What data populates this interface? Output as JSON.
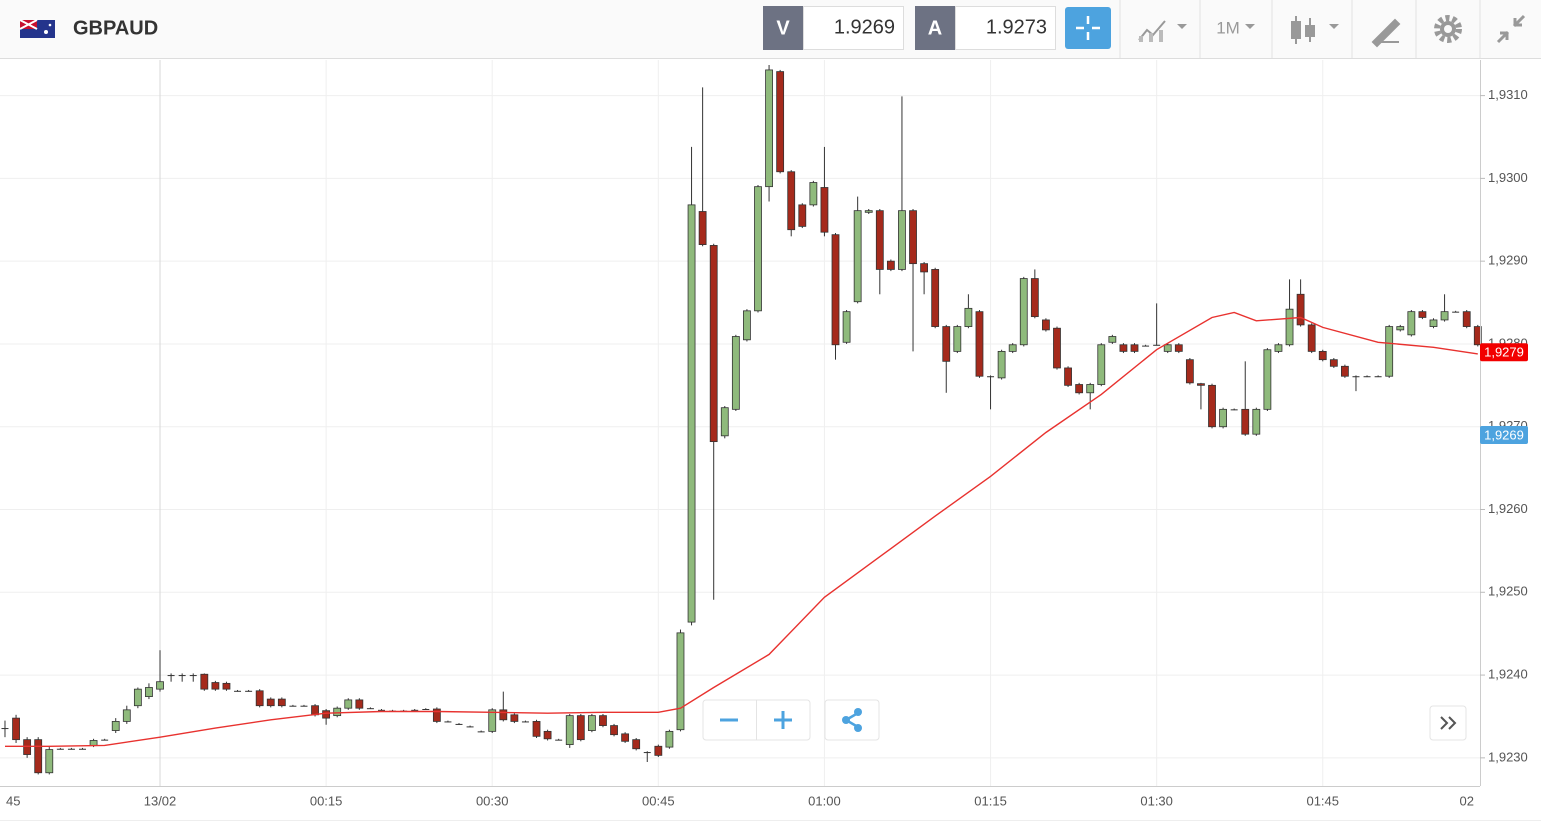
{
  "header": {
    "symbol": "GBPAUD",
    "bid_label": "V",
    "bid": "1.9269",
    "ask_label": "A",
    "ask": "1.9273",
    "timeframe": "1M"
  },
  "chart_data": {
    "type": "candlestick",
    "up_color": "#8fba7c",
    "down_color": "#a52a1c",
    "doji_color": "#333333",
    "grid": true,
    "xlim": [
      -14.45,
      119.2
    ],
    "ylim": [
      1.92266,
      1.93143
    ],
    "yticks": [
      {
        "value": 1.923,
        "label": "1,9230"
      },
      {
        "value": 1.924,
        "label": "1,9240"
      },
      {
        "value": 1.925,
        "label": "1,9250"
      },
      {
        "value": 1.926,
        "label": "1,9260"
      },
      {
        "value": 1.927,
        "label": "1,9270"
      },
      {
        "value": 1.928,
        "label": "1,9280"
      },
      {
        "value": 1.929,
        "label": "1,9290"
      },
      {
        "value": 1.93,
        "label": "1,9300"
      },
      {
        "value": 1.931,
        "label": "1,9310"
      }
    ],
    "xticks": [
      {
        "value": -15,
        "label": "45"
      },
      {
        "value": 0,
        "label": "13/02"
      },
      {
        "value": 15,
        "label": "00:15"
      },
      {
        "value": 30,
        "label": "00:30"
      },
      {
        "value": 45,
        "label": "00:45"
      },
      {
        "value": 60,
        "label": "01:00"
      },
      {
        "value": 75,
        "label": "01:15"
      },
      {
        "value": 90,
        "label": "01:30"
      },
      {
        "value": 105,
        "label": "01:45"
      },
      {
        "value": 120,
        "label": "02"
      }
    ],
    "x": [
      -14,
      -13,
      -12,
      -11,
      -10,
      -9,
      -8,
      -7,
      -6,
      -5,
      -4,
      -3,
      -2,
      -1,
      0,
      1,
      2,
      3,
      4,
      5,
      6,
      7,
      8,
      9,
      10,
      11,
      12,
      13,
      14,
      15,
      16,
      17,
      18,
      19,
      20,
      21,
      22,
      23,
      24,
      25,
      26,
      27,
      28,
      29,
      30,
      31,
      32,
      33,
      34,
      35,
      36,
      37,
      38,
      39,
      40,
      41,
      42,
      43,
      44,
      45,
      46,
      47,
      48,
      49,
      50,
      51,
      52,
      53,
      54,
      55,
      56,
      57,
      58,
      59,
      60,
      61,
      62,
      63,
      64,
      65,
      66,
      67,
      68,
      69,
      70,
      71,
      72,
      73,
      74,
      75,
      76,
      77,
      78,
      79,
      80,
      81,
      82,
      83,
      84,
      85,
      86,
      87,
      88,
      89,
      90,
      91,
      92,
      93,
      94,
      95,
      96,
      97,
      98,
      99,
      100,
      101,
      102,
      103,
      104,
      105,
      106,
      107,
      108,
      109,
      110,
      111,
      112,
      113,
      114,
      115,
      116,
      117,
      118,
      119
    ],
    "open": [
      1.92336,
      1.92348,
      1.92322,
      1.92322,
      1.92282,
      1.92311,
      1.92311,
      1.92311,
      1.92315,
      1.92322,
      1.92333,
      1.92344,
      1.92363,
      1.92374,
      1.92383,
      1.924,
      1.924,
      1.924,
      1.92401,
      1.92391,
      1.9239,
      1.92381,
      1.92381,
      1.92381,
      1.92371,
      1.92371,
      1.92363,
      1.92363,
      1.92363,
      1.92357,
      1.92351,
      1.9236,
      1.9237,
      1.9236,
      1.92358,
      1.92357,
      1.92357,
      1.92358,
      1.92359,
      1.92359,
      1.92344,
      1.92341,
      1.92338,
      1.92332,
      1.92332,
      1.92358,
      1.92352,
      1.92344,
      1.92344,
      1.92332,
      1.92322,
      1.92316,
      1.92351,
      1.92333,
      1.92351,
      1.92339,
      1.92329,
      1.92322,
      1.92307,
      1.92314,
      1.92313,
      1.92334,
      1.92464,
      1.9296,
      1.92919,
      1.92689,
      1.92721,
      1.92805,
      1.9284,
      1.9299,
      1.93129,
      1.93008,
      1.92968,
      1.92968,
      1.92989,
      1.92932,
      1.92802,
      1.92851,
      1.92959,
      1.92961,
      1.929,
      1.9289,
      1.92961,
      1.92897,
      1.9289,
      1.92821,
      1.92791,
      1.92821,
      1.92839,
      1.92761,
      1.92759,
      1.92791,
      1.92799,
      1.92879,
      1.92829,
      1.92819,
      1.92771,
      1.92751,
      1.92741,
      1.92751,
      1.92802,
      1.92799,
      1.92799,
      1.92798,
      1.92799,
      1.92791,
      1.92799,
      1.92781,
      1.92752,
      1.9275,
      1.927,
      1.92721,
      1.92721,
      1.92691,
      1.92721,
      1.92791,
      1.92799,
      1.9286,
      1.92823,
      1.92791,
      1.92781,
      1.92773,
      1.92761,
      1.92761,
      1.92761,
      1.92761,
      1.92817,
      1.92811,
      1.92839,
      1.92821,
      1.92829,
      1.92839,
      1.92839,
      1.92821
    ],
    "high": [
      1.92345,
      1.92352,
      1.92325,
      1.92325,
      1.92313,
      1.92312,
      1.92312,
      1.92312,
      1.92323,
      1.92323,
      1.92348,
      1.92363,
      1.92385,
      1.9239,
      1.9243,
      1.92402,
      1.92402,
      1.92402,
      1.92402,
      1.92393,
      1.92392,
      1.92382,
      1.92382,
      1.92383,
      1.92373,
      1.92373,
      1.92364,
      1.92364,
      1.92365,
      1.92359,
      1.92362,
      1.92372,
      1.92372,
      1.92361,
      1.92359,
      1.92358,
      1.92358,
      1.92359,
      1.9236,
      1.92361,
      1.92345,
      1.92342,
      1.92339,
      1.92333,
      1.9236,
      1.9238,
      1.92354,
      1.92345,
      1.92346,
      1.92334,
      1.92323,
      1.92353,
      1.92353,
      1.92353,
      1.92353,
      1.92341,
      1.92331,
      1.92324,
      1.92308,
      1.92316,
      1.92334,
      1.92455,
      1.93038,
      1.9311,
      1.92921,
      1.92725,
      1.92811,
      1.92842,
      1.92992,
      1.93137,
      1.93131,
      1.9301,
      1.9297,
      1.92997,
      1.93038,
      1.92934,
      1.92841,
      1.92978,
      1.92963,
      1.92963,
      1.92902,
      1.93099,
      1.92963,
      1.92899,
      1.92892,
      1.92823,
      1.92823,
      1.9286,
      1.92841,
      1.92762,
      1.92793,
      1.92801,
      1.92881,
      1.9289,
      1.92831,
      1.92821,
      1.92773,
      1.92753,
      1.92753,
      1.92801,
      1.92811,
      1.92801,
      1.92801,
      1.92799,
      1.92849,
      1.92801,
      1.92801,
      1.92783,
      1.92753,
      1.92752,
      1.92723,
      1.92722,
      1.92779,
      1.92723,
      1.92795,
      1.92801,
      1.92878,
      1.92878,
      1.92825,
      1.92793,
      1.92783,
      1.92775,
      1.92762,
      1.92762,
      1.92762,
      1.92823,
      1.92823,
      1.92841,
      1.92841,
      1.92831,
      1.9286,
      1.9284,
      1.92841,
      1.92823
    ],
    "low": [
      1.92325,
      1.92318,
      1.923,
      1.9228,
      1.9228,
      1.9231,
      1.9231,
      1.9231,
      1.92313,
      1.92321,
      1.9233,
      1.92341,
      1.9236,
      1.92371,
      1.9238,
      1.92392,
      1.92392,
      1.92392,
      1.92381,
      1.92381,
      1.92381,
      1.9238,
      1.9238,
      1.92361,
      1.92361,
      1.92361,
      1.92362,
      1.92362,
      1.9235,
      1.9234,
      1.92349,
      1.92358,
      1.92358,
      1.92359,
      1.92357,
      1.92356,
      1.92356,
      1.92357,
      1.92358,
      1.92342,
      1.92343,
      1.9234,
      1.92337,
      1.92331,
      1.9233,
      1.92344,
      1.92342,
      1.92343,
      1.92324,
      1.92321,
      1.92321,
      1.92312,
      1.9232,
      1.92331,
      1.92337,
      1.92326,
      1.92318,
      1.92309,
      1.92295,
      1.92301,
      1.92311,
      1.92332,
      1.9246,
      1.92918,
      1.92491,
      1.92686,
      1.92719,
      1.92803,
      1.92838,
      1.92972,
      1.93006,
      1.9293,
      1.9294,
      1.92966,
      1.9293,
      1.92781,
      1.928,
      1.92849,
      1.92957,
      1.9286,
      1.92888,
      1.92888,
      1.92791,
      1.9286,
      1.92819,
      1.92741,
      1.92789,
      1.92819,
      1.92759,
      1.92721,
      1.92757,
      1.92789,
      1.92797,
      1.92831,
      1.92815,
      1.92769,
      1.92748,
      1.92739,
      1.92721,
      1.92749,
      1.928,
      1.92789,
      1.92789,
      1.92797,
      1.92798,
      1.92789,
      1.92789,
      1.92751,
      1.92721,
      1.92698,
      1.92698,
      1.9272,
      1.92689,
      1.92689,
      1.92719,
      1.92789,
      1.92797,
      1.92821,
      1.92789,
      1.92779,
      1.92771,
      1.92759,
      1.92743,
      1.9276,
      1.9276,
      1.92759,
      1.92815,
      1.92809,
      1.9283,
      1.92819,
      1.92827,
      1.92838,
      1.92819,
      1.92797
    ],
    "close": [
      1.92336,
      1.92322,
      1.92304,
      1.92282,
      1.9231,
      1.92311,
      1.92311,
      1.92311,
      1.92321,
      1.92322,
      1.92344,
      1.92358,
      1.92383,
      1.92385,
      1.92392,
      1.924,
      1.924,
      1.924,
      1.92383,
      1.92383,
      1.92383,
      1.92381,
      1.92381,
      1.92363,
      1.92363,
      1.92363,
      1.92363,
      1.92363,
      1.92352,
      1.92348,
      1.9236,
      1.9237,
      1.9236,
      1.9236,
      1.92358,
      1.92357,
      1.92357,
      1.92358,
      1.92359,
      1.92344,
      1.92344,
      1.92341,
      1.92338,
      1.92332,
      1.92358,
      1.92346,
      1.92344,
      1.92344,
      1.92326,
      1.92323,
      1.92322,
      1.92351,
      1.92322,
      1.92351,
      1.92339,
      1.92328,
      1.9232,
      1.92311,
      1.92307,
      1.92303,
      1.92332,
      1.92451,
      1.92968,
      1.9292,
      1.92682,
      1.92723,
      1.92809,
      1.9284,
      1.9299,
      1.93131,
      1.93008,
      1.92938,
      1.92942,
      1.92995,
      1.92935,
      1.92799,
      1.92839,
      1.92961,
      1.92961,
      1.9289,
      1.9289,
      1.92961,
      1.92897,
      1.92887,
      1.92821,
      1.92779,
      1.92821,
      1.92843,
      1.92761,
      1.92761,
      1.92791,
      1.92799,
      1.92879,
      1.92833,
      1.92817,
      1.92771,
      1.9275,
      1.92741,
      1.92751,
      1.92799,
      1.92809,
      1.92791,
      1.92791,
      1.92798,
      1.92799,
      1.92799,
      1.92791,
      1.92753,
      1.9275,
      1.927,
      1.92721,
      1.92721,
      1.92691,
      1.92721,
      1.92793,
      1.92799,
      1.92842,
      1.92823,
      1.92791,
      1.92781,
      1.92773,
      1.92761,
      1.92761,
      1.92761,
      1.92761,
      1.92821,
      1.92821,
      1.92839,
      1.92832,
      1.92829,
      1.92839,
      1.92839,
      1.92821,
      1.92799
    ],
    "ma": {
      "color": "#e8322f",
      "x": [
        -14,
        -10,
        -5,
        0,
        5,
        10,
        15,
        20,
        25,
        30,
        35,
        40,
        45,
        47,
        50,
        55,
        60,
        65,
        70,
        75,
        80,
        85,
        90,
        95,
        97,
        99,
        103,
        105,
        110,
        115,
        119
      ],
      "values": [
        1.92314,
        1.92314,
        1.92315,
        1.92325,
        1.92336,
        1.92346,
        1.92354,
        1.92356,
        1.92356,
        1.92355,
        1.92354,
        1.92355,
        1.92355,
        1.9236,
        1.92385,
        1.92425,
        1.92494,
        1.92543,
        1.92592,
        1.9264,
        1.92693,
        1.92739,
        1.92793,
        1.92832,
        1.92838,
        1.92828,
        1.92832,
        1.9282,
        1.92802,
        1.92796,
        1.92788
      ]
    },
    "price_markers": [
      {
        "value": 1.9279,
        "label": "1,9279",
        "color": "#f20000"
      },
      {
        "value": 1.9269,
        "label": "1,9269",
        "color": "#4da3df"
      }
    ]
  }
}
